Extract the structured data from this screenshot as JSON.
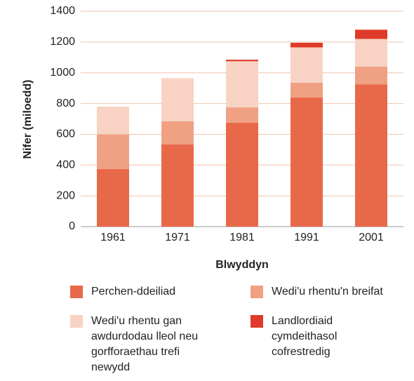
{
  "chart_data": {
    "type": "stacked_bar",
    "x_label": "Blwyddyn",
    "y_label": "Nifer (miloedd)",
    "categories": [
      "1961",
      "1971",
      "1981",
      "1991",
      "2001"
    ],
    "series": [
      {
        "name": "Perchen-ddeiliad",
        "color": "#e8694a",
        "values": [
          375,
          535,
          675,
          840,
          925
        ]
      },
      {
        "name": "Wedi'u rhentu'n breifat",
        "color": "#f0a083",
        "values": [
          225,
          150,
          100,
          95,
          115
        ]
      },
      {
        "name": "Wedi'u rhentu gan awdurdodau lleol neu gorfforaethau trefi newydd",
        "color": "#f8d3c3",
        "values": [
          180,
          280,
          300,
          230,
          180
        ]
      },
      {
        "name": "Landlordiaid cymdeithasol cofrestredig",
        "color": "#e03a2a",
        "values": [
          0,
          0,
          10,
          30,
          60
        ]
      }
    ],
    "ylim": [
      0,
      1400
    ],
    "yticks": [
      0,
      200,
      400,
      600,
      800,
      1000,
      1200,
      1400
    ],
    "grid": true
  }
}
